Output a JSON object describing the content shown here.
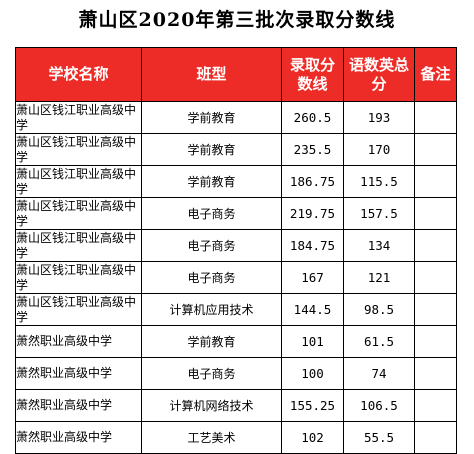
{
  "page_title": "萧山区2020年第三批次录取分数线",
  "colors": {
    "header_bg": "#ee2c27",
    "header_text": "#ffffff",
    "border": "#000000"
  },
  "table": {
    "headers": [
      "学校名称",
      "班型",
      "录取分\n数线",
      "语数英总\n分",
      "备注"
    ],
    "rows": [
      {
        "school": "萧山区钱江职业高级中学",
        "major": "学前教育",
        "score": "260.5",
        "total": "193",
        "note": ""
      },
      {
        "school": "萧山区钱江职业高级中学",
        "major": "学前教育",
        "score": "235.5",
        "total": "170",
        "note": ""
      },
      {
        "school": "萧山区钱江职业高级中学",
        "major": "学前教育",
        "score": "186.75",
        "total": "115.5",
        "note": ""
      },
      {
        "school": "萧山区钱江职业高级中学",
        "major": "电子商务",
        "score": "219.75",
        "total": "157.5",
        "note": ""
      },
      {
        "school": "萧山区钱江职业高级中学",
        "major": "电子商务",
        "score": "184.75",
        "total": "134",
        "note": ""
      },
      {
        "school": "萧山区钱江职业高级中学",
        "major": "电子商务",
        "score": "167",
        "total": "121",
        "note": ""
      },
      {
        "school": "萧山区钱江职业高级中学",
        "major": "计算机应用技术",
        "score": "144.5",
        "total": "98.5",
        "note": ""
      },
      {
        "school": "萧然职业高级中学",
        "major": "学前教育",
        "score": "101",
        "total": "61.5",
        "note": ""
      },
      {
        "school": "萧然职业高级中学",
        "major": "电子商务",
        "score": "100",
        "total": "74",
        "note": ""
      },
      {
        "school": "萧然职业高级中学",
        "major": "计算机网络技术",
        "score": "155.25",
        "total": "106.5",
        "note": ""
      },
      {
        "school": "萧然职业高级中学",
        "major": "工艺美术",
        "score": "102",
        "total": "55.5",
        "note": ""
      }
    ]
  }
}
